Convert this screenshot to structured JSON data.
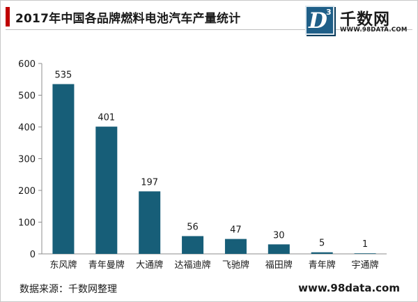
{
  "header": {
    "title": "2017年中国各品牌燃料电池汽车产量统计"
  },
  "logo": {
    "mark_letter": "D",
    "mark_superscript": "3",
    "name": "千数网",
    "url": "WWW.98DATA.COM"
  },
  "footer": {
    "source": "数据来源：千数网整理",
    "site": "www.98data.com"
  },
  "colors": {
    "bar": "#175e78",
    "accent": "#c00000",
    "logo": "#1f5f88"
  },
  "chart_data": {
    "type": "bar",
    "title": "2017年中国各品牌燃料电池汽车产量统计",
    "xlabel": "",
    "ylabel": "",
    "categories": [
      "东风牌",
      "青年曼牌",
      "大通牌",
      "达福迪牌",
      "飞驰牌",
      "福田牌",
      "青年牌",
      "宇通牌"
    ],
    "values": [
      535,
      401,
      197,
      56,
      47,
      30,
      5,
      1
    ],
    "ylim": [
      0,
      600
    ],
    "yticks": [
      0,
      100,
      200,
      300,
      400,
      500,
      600
    ],
    "ytick_labels": [
      "0",
      "100",
      "200",
      "300",
      "400",
      "500",
      "600"
    ],
    "data_labels": [
      "535",
      "401",
      "197",
      "56",
      "47",
      "30",
      "5",
      "1"
    ],
    "grid": false,
    "legend": "none"
  }
}
